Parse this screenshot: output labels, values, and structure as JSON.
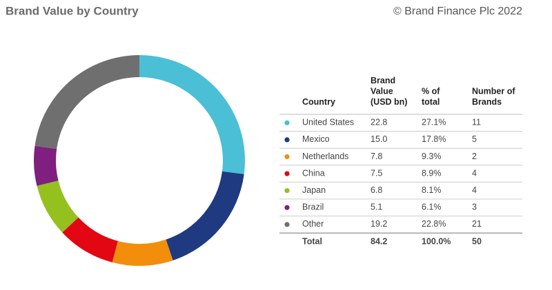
{
  "chart_data": {
    "type": "pie",
    "donut": true,
    "title": "Brand Value by Country",
    "source": "© Brand Finance Plc 2022",
    "categories": [
      "United States",
      "Mexico",
      "Netherlands",
      "China",
      "Japan",
      "Brazil",
      "Other"
    ],
    "colors": [
      "#4bbfd6",
      "#1f3a80",
      "#f28e0c",
      "#e30613",
      "#95c11f",
      "#7f1f7f",
      "#6f6f6f"
    ],
    "values": [
      27.1,
      17.8,
      9.3,
      8.9,
      8.1,
      6.1,
      22.8
    ],
    "value_labels": [
      "27.1%",
      "17.8%",
      "9.3%",
      "8.9%",
      "8.1%",
      "6.1%",
      "22.8%"
    ]
  },
  "table": {
    "headers": [
      "Country",
      "Brand\nValue\n(USD bn)",
      "% of\ntotal",
      "Number of\nBrands"
    ],
    "brand_values": [
      "22.8",
      "15.0",
      "7.8",
      "7.5",
      "6.8",
      "5.1",
      "19.2"
    ],
    "brand_counts": [
      "11",
      "5",
      "2",
      "4",
      "4",
      "3",
      "21"
    ],
    "total": [
      "Total",
      "84.2",
      "100.0%",
      "50"
    ]
  }
}
